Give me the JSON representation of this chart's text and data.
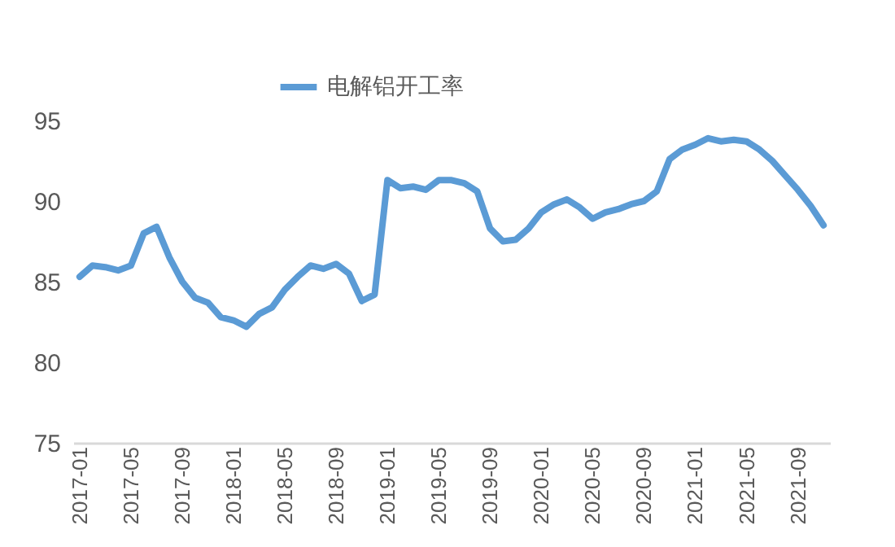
{
  "chart_data": {
    "type": "line",
    "categories": [
      "2017-01",
      null,
      null,
      null,
      "2017-05",
      null,
      null,
      null,
      "2017-09",
      null,
      null,
      null,
      "2018-01",
      null,
      null,
      null,
      "2018-05",
      null,
      null,
      null,
      "2018-09",
      null,
      null,
      null,
      "2019-01",
      null,
      null,
      null,
      "2019-05",
      null,
      null,
      null,
      "2019-09",
      null,
      null,
      null,
      "2020-01",
      null,
      null,
      null,
      "2020-05",
      null,
      null,
      null,
      "2020-09",
      null,
      null,
      null,
      "2021-01",
      null,
      null,
      null,
      "2021-05",
      null,
      null,
      null,
      "2021-09",
      null,
      null
    ],
    "series": [
      {
        "name": "电解铝开工率",
        "color": "#5b9bd5",
        "values": [
          85.3,
          86.0,
          85.9,
          85.7,
          86.0,
          88.0,
          88.4,
          86.5,
          85.0,
          84.0,
          83.7,
          82.8,
          82.6,
          82.2,
          83.0,
          83.4,
          84.5,
          85.3,
          86.0,
          85.8,
          86.1,
          85.5,
          83.8,
          84.2,
          91.3,
          90.8,
          90.9,
          90.7,
          91.3,
          91.3,
          91.1,
          90.6,
          88.3,
          87.5,
          87.6,
          88.3,
          89.3,
          89.8,
          90.1,
          89.6,
          88.9,
          89.3,
          89.5,
          89.8,
          90.0,
          90.6,
          92.6,
          93.2,
          93.5,
          93.9,
          93.7,
          93.8,
          93.7,
          93.2,
          92.5,
          91.6,
          90.7,
          89.7,
          88.5
        ]
      }
    ],
    "ylim": [
      75,
      95
    ],
    "yticks": [
      75,
      80,
      85,
      90,
      95
    ],
    "grid": false,
    "legend": "top",
    "marker": "none",
    "line_style": "solid"
  }
}
